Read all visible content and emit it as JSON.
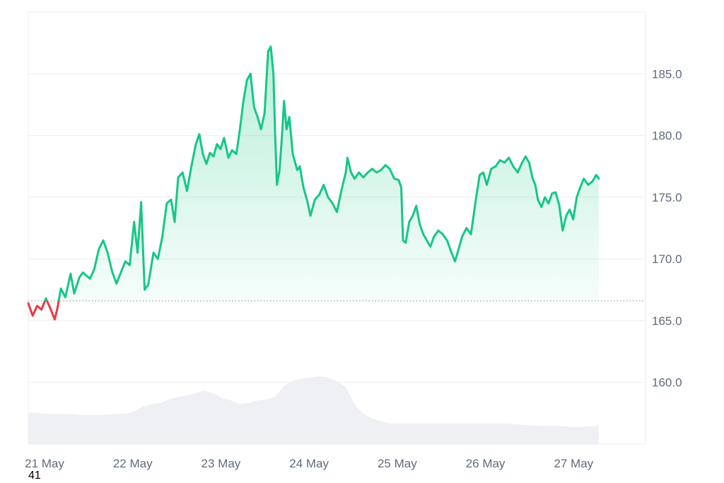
{
  "chart_data": {
    "type": "area",
    "xlim": [
      21.0,
      28.0
    ],
    "ylim": [
      155.0,
      190.0
    ],
    "y_ticks": [
      160,
      165,
      170,
      175,
      180,
      185
    ],
    "y_tick_labels": [
      "160.0",
      "165.0",
      "170.0",
      "175.0",
      "180.0",
      "185.0"
    ],
    "x_ticks": [
      21,
      22,
      23,
      24,
      25,
      26,
      27
    ],
    "x_tick_labels": [
      "21 May",
      "22 May",
      "23 May",
      "24 May",
      "25 May",
      "26 May",
      "27 May"
    ],
    "reference_value": 166.6,
    "grid": true,
    "colors": {
      "above": "#16c784",
      "below": "#ea3943",
      "volume": "#eef0f4",
      "grid": "#eceef1",
      "reference": "#9aa3ad"
    },
    "price": [
      [
        21.0,
        166.4
      ],
      [
        21.05,
        165.4
      ],
      [
        21.1,
        166.2
      ],
      [
        21.15,
        165.9
      ],
      [
        21.2,
        166.8
      ],
      [
        21.25,
        166.0
      ],
      [
        21.3,
        165.1
      ],
      [
        21.33,
        166.0
      ],
      [
        21.37,
        167.6
      ],
      [
        21.42,
        166.9
      ],
      [
        21.48,
        168.8
      ],
      [
        21.52,
        167.2
      ],
      [
        21.58,
        168.5
      ],
      [
        21.62,
        168.9
      ],
      [
        21.7,
        168.4
      ],
      [
        21.75,
        169.2
      ],
      [
        21.8,
        170.8
      ],
      [
        21.85,
        171.5
      ],
      [
        21.9,
        170.5
      ],
      [
        21.95,
        169.0
      ],
      [
        22.0,
        168.0
      ],
      [
        22.05,
        168.9
      ],
      [
        22.1,
        169.8
      ],
      [
        22.15,
        169.5
      ],
      [
        22.2,
        173.0
      ],
      [
        22.24,
        170.5
      ],
      [
        22.28,
        174.6
      ],
      [
        22.32,
        167.5
      ],
      [
        22.36,
        167.9
      ],
      [
        22.42,
        170.5
      ],
      [
        22.47,
        170.0
      ],
      [
        22.52,
        171.8
      ],
      [
        22.57,
        174.5
      ],
      [
        22.62,
        174.8
      ],
      [
        22.66,
        173.0
      ],
      [
        22.7,
        176.6
      ],
      [
        22.75,
        177.0
      ],
      [
        22.8,
        175.5
      ],
      [
        22.85,
        177.5
      ],
      [
        22.9,
        179.3
      ],
      [
        22.94,
        180.1
      ],
      [
        22.98,
        178.5
      ],
      [
        23.02,
        177.7
      ],
      [
        23.06,
        178.6
      ],
      [
        23.1,
        178.3
      ],
      [
        23.14,
        179.3
      ],
      [
        23.18,
        178.9
      ],
      [
        23.22,
        179.8
      ],
      [
        23.27,
        178.2
      ],
      [
        23.31,
        178.8
      ],
      [
        23.36,
        178.5
      ],
      [
        23.4,
        180.5
      ],
      [
        23.44,
        182.8
      ],
      [
        23.48,
        184.5
      ],
      [
        23.52,
        185.0
      ],
      [
        23.56,
        182.3
      ],
      [
        23.6,
        181.5
      ],
      [
        23.64,
        180.5
      ],
      [
        23.68,
        181.8
      ],
      [
        23.72,
        186.8
      ],
      [
        23.75,
        187.2
      ],
      [
        23.78,
        185.0
      ],
      [
        23.8,
        180.0
      ],
      [
        23.82,
        176.0
      ],
      [
        23.85,
        177.2
      ],
      [
        23.88,
        180.3
      ],
      [
        23.9,
        182.8
      ],
      [
        23.93,
        180.5
      ],
      [
        23.96,
        181.5
      ],
      [
        24.0,
        178.5
      ],
      [
        24.05,
        177.2
      ],
      [
        24.08,
        177.5
      ],
      [
        24.12,
        175.8
      ],
      [
        24.16,
        174.8
      ],
      [
        24.2,
        173.5
      ],
      [
        24.25,
        174.8
      ],
      [
        24.3,
        175.2
      ],
      [
        24.35,
        176.0
      ],
      [
        24.4,
        175.0
      ],
      [
        24.45,
        174.5
      ],
      [
        24.5,
        173.8
      ],
      [
        24.55,
        175.5
      ],
      [
        24.6,
        177.0
      ],
      [
        24.62,
        178.2
      ],
      [
        24.66,
        177.0
      ],
      [
        24.7,
        176.5
      ],
      [
        24.75,
        177.0
      ],
      [
        24.8,
        176.6
      ],
      [
        24.85,
        177.0
      ],
      [
        24.9,
        177.3
      ],
      [
        24.95,
        177.0
      ],
      [
        25.0,
        177.2
      ],
      [
        25.05,
        177.6
      ],
      [
        25.1,
        177.3
      ],
      [
        25.15,
        176.5
      ],
      [
        25.2,
        176.4
      ],
      [
        25.23,
        175.8
      ],
      [
        25.25,
        171.5
      ],
      [
        25.28,
        171.3
      ],
      [
        25.32,
        173.0
      ],
      [
        25.36,
        173.5
      ],
      [
        25.4,
        174.3
      ],
      [
        25.44,
        172.8
      ],
      [
        25.48,
        172.0
      ],
      [
        25.52,
        171.5
      ],
      [
        25.56,
        171.0
      ],
      [
        25.6,
        171.8
      ],
      [
        25.65,
        172.3
      ],
      [
        25.7,
        172.0
      ],
      [
        25.75,
        171.5
      ],
      [
        25.8,
        170.5
      ],
      [
        25.84,
        169.8
      ],
      [
        25.88,
        170.8
      ],
      [
        25.92,
        171.8
      ],
      [
        25.97,
        172.5
      ],
      [
        26.02,
        172.0
      ],
      [
        26.05,
        173.5
      ],
      [
        26.08,
        175.0
      ],
      [
        26.12,
        176.8
      ],
      [
        26.16,
        177.0
      ],
      [
        26.2,
        176.0
      ],
      [
        26.25,
        177.3
      ],
      [
        26.3,
        177.5
      ],
      [
        26.35,
        178.0
      ],
      [
        26.4,
        177.8
      ],
      [
        26.45,
        178.2
      ],
      [
        26.5,
        177.5
      ],
      [
        26.55,
        177.0
      ],
      [
        26.6,
        177.8
      ],
      [
        26.64,
        178.3
      ],
      [
        26.68,
        177.8
      ],
      [
        26.72,
        176.5
      ],
      [
        26.75,
        176.0
      ],
      [
        26.78,
        174.8
      ],
      [
        26.82,
        174.2
      ],
      [
        26.86,
        175.0
      ],
      [
        26.9,
        174.5
      ],
      [
        26.94,
        175.3
      ],
      [
        26.98,
        175.4
      ],
      [
        27.02,
        174.4
      ],
      [
        27.06,
        172.3
      ],
      [
        27.1,
        173.5
      ],
      [
        27.14,
        174.0
      ],
      [
        27.18,
        173.2
      ],
      [
        27.22,
        175.0
      ],
      [
        27.26,
        175.8
      ],
      [
        27.3,
        176.5
      ],
      [
        27.35,
        176.0
      ],
      [
        27.4,
        176.3
      ],
      [
        27.44,
        176.8
      ],
      [
        27.47,
        176.5
      ]
    ],
    "volume_relative": [
      [
        21.0,
        0.26
      ],
      [
        21.2,
        0.25
      ],
      [
        21.4,
        0.25
      ],
      [
        21.6,
        0.24
      ],
      [
        21.8,
        0.24
      ],
      [
        22.0,
        0.25
      ],
      [
        22.1,
        0.25
      ],
      [
        22.2,
        0.27
      ],
      [
        22.3,
        0.31
      ],
      [
        22.4,
        0.33
      ],
      [
        22.5,
        0.34
      ],
      [
        22.6,
        0.37
      ],
      [
        22.7,
        0.39
      ],
      [
        22.8,
        0.4
      ],
      [
        22.9,
        0.42
      ],
      [
        23.0,
        0.44
      ],
      [
        23.1,
        0.42
      ],
      [
        23.2,
        0.38
      ],
      [
        23.3,
        0.36
      ],
      [
        23.4,
        0.33
      ],
      [
        23.5,
        0.34
      ],
      [
        23.6,
        0.36
      ],
      [
        23.7,
        0.37
      ],
      [
        23.8,
        0.39
      ],
      [
        23.9,
        0.48
      ],
      [
        24.0,
        0.52
      ],
      [
        24.1,
        0.54
      ],
      [
        24.2,
        0.55
      ],
      [
        24.3,
        0.56
      ],
      [
        24.4,
        0.55
      ],
      [
        24.5,
        0.52
      ],
      [
        24.6,
        0.47
      ],
      [
        24.65,
        0.4
      ],
      [
        24.7,
        0.33
      ],
      [
        24.8,
        0.25
      ],
      [
        24.9,
        0.21
      ],
      [
        25.0,
        0.19
      ],
      [
        25.1,
        0.17
      ],
      [
        25.3,
        0.17
      ],
      [
        25.5,
        0.17
      ],
      [
        25.7,
        0.17
      ],
      [
        26.0,
        0.17
      ],
      [
        26.2,
        0.17
      ],
      [
        26.4,
        0.17
      ],
      [
        26.6,
        0.16
      ],
      [
        26.8,
        0.15
      ],
      [
        27.0,
        0.15
      ],
      [
        27.2,
        0.14
      ],
      [
        27.47,
        0.15
      ]
    ]
  },
  "footer": {
    "corner_number": "41"
  }
}
